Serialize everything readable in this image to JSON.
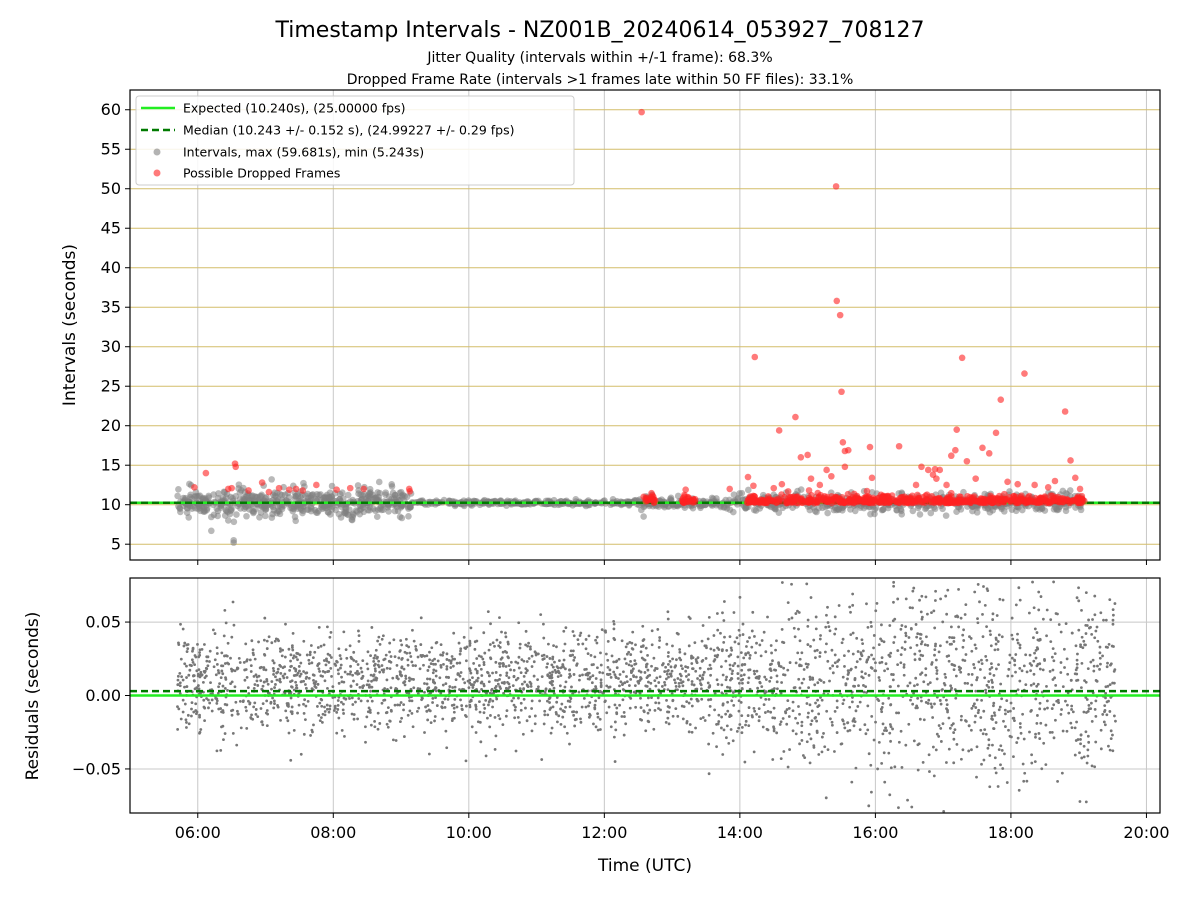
{
  "chart_data": [
    {
      "type": "scatter",
      "title": "Timestamp Intervals - NZ001B_20240614_053927_708127",
      "subtitle_1": "Jitter Quality (intervals within +/-1 frame): 68.3%",
      "subtitle_2": "Dropped Frame Rate (intervals >1 frames late within 50 FF files): 33.1%",
      "ylabel": "Intervals (seconds)",
      "xlim_hours": [
        5.0,
        20.2
      ],
      "ylim": [
        3,
        62.5
      ],
      "yticks": [
        5,
        10,
        15,
        20,
        25,
        30,
        35,
        40,
        45,
        50,
        55,
        60
      ],
      "ytick_labels": [
        "5",
        "10",
        "15",
        "20",
        "25",
        "30",
        "35",
        "40",
        "45",
        "50",
        "55",
        "60"
      ],
      "grid": true,
      "legend_position": "upper-left",
      "series": [
        {
          "name": "Expected (10.240s), (25.00000 fps)",
          "kind": "hline",
          "y": 10.24,
          "color": "#22ee22",
          "style": "solid"
        },
        {
          "name": "Median (10.243 +/- 0.152 s), (24.99227 +/- 0.29 fps)",
          "kind": "hline",
          "y": 10.243,
          "color": "#007a00",
          "style": "dashed"
        },
        {
          "name": "Intervals, max (59.681s), min (5.243s)",
          "kind": "scatter",
          "color": "#808080",
          "max": 59.681,
          "min": 5.243,
          "segments_hours": [
            [
              5.7,
              9.15
            ],
            [
              9.15,
              12.5
            ],
            [
              12.5,
              19.1
            ]
          ],
          "low_outliers": [
            {
              "x": 6.2,
              "y": 6.7
            },
            {
              "x": 6.53,
              "y": 5.5
            },
            {
              "x": 6.53,
              "y": 5.2
            },
            {
              "x": 12.58,
              "y": 8.5
            }
          ]
        },
        {
          "name": "Possible Dropped Frames",
          "kind": "scatter",
          "color": "#ff2222",
          "points": [
            {
              "x": 5.95,
              "y": 12.2
            },
            {
              "x": 6.12,
              "y": 14.0
            },
            {
              "x": 6.45,
              "y": 12.0
            },
            {
              "x": 6.5,
              "y": 12.1
            },
            {
              "x": 6.55,
              "y": 15.2
            },
            {
              "x": 6.56,
              "y": 14.8
            },
            {
              "x": 6.75,
              "y": 11.8
            },
            {
              "x": 6.95,
              "y": 12.8
            },
            {
              "x": 7.05,
              "y": 11.6
            },
            {
              "x": 7.2,
              "y": 12.1
            },
            {
              "x": 7.35,
              "y": 11.9
            },
            {
              "x": 7.45,
              "y": 12.0
            },
            {
              "x": 7.55,
              "y": 11.8
            },
            {
              "x": 7.75,
              "y": 12.5
            },
            {
              "x": 8.05,
              "y": 11.9
            },
            {
              "x": 8.25,
              "y": 12.1
            },
            {
              "x": 8.45,
              "y": 12.0
            },
            {
              "x": 9.12,
              "y": 12.0
            },
            {
              "x": 9.13,
              "y": 11.7
            },
            {
              "x": 12.55,
              "y": 59.7
            },
            {
              "x": 12.58,
              "y": 11.0
            },
            {
              "x": 13.2,
              "y": 11.9
            },
            {
              "x": 13.85,
              "y": 12.0
            },
            {
              "x": 14.12,
              "y": 13.5
            },
            {
              "x": 14.2,
              "y": 12.4
            },
            {
              "x": 14.22,
              "y": 28.7
            },
            {
              "x": 14.5,
              "y": 12.1
            },
            {
              "x": 14.58,
              "y": 19.4
            },
            {
              "x": 14.62,
              "y": 12.6
            },
            {
              "x": 14.82,
              "y": 21.1
            },
            {
              "x": 14.9,
              "y": 16.0
            },
            {
              "x": 15.0,
              "y": 16.3
            },
            {
              "x": 15.05,
              "y": 13.3
            },
            {
              "x": 15.18,
              "y": 12.5
            },
            {
              "x": 15.28,
              "y": 14.4
            },
            {
              "x": 15.35,
              "y": 13.6
            },
            {
              "x": 15.42,
              "y": 50.3
            },
            {
              "x": 15.43,
              "y": 35.8
            },
            {
              "x": 15.48,
              "y": 34.0
            },
            {
              "x": 15.5,
              "y": 24.3
            },
            {
              "x": 15.52,
              "y": 17.9
            },
            {
              "x": 15.55,
              "y": 16.8
            },
            {
              "x": 15.6,
              "y": 16.9
            },
            {
              "x": 15.55,
              "y": 14.8
            },
            {
              "x": 15.92,
              "y": 17.3
            },
            {
              "x": 15.95,
              "y": 13.4
            },
            {
              "x": 16.35,
              "y": 17.4
            },
            {
              "x": 16.6,
              "y": 12.5
            },
            {
              "x": 16.68,
              "y": 14.8
            },
            {
              "x": 16.78,
              "y": 14.4
            },
            {
              "x": 16.85,
              "y": 13.8
            },
            {
              "x": 16.88,
              "y": 14.5
            },
            {
              "x": 16.9,
              "y": 13.3
            },
            {
              "x": 16.95,
              "y": 14.4
            },
            {
              "x": 17.05,
              "y": 12.5
            },
            {
              "x": 17.12,
              "y": 16.2
            },
            {
              "x": 17.18,
              "y": 16.9
            },
            {
              "x": 17.2,
              "y": 19.5
            },
            {
              "x": 17.28,
              "y": 28.6
            },
            {
              "x": 17.35,
              "y": 15.5
            },
            {
              "x": 17.48,
              "y": 13.3
            },
            {
              "x": 17.58,
              "y": 17.2
            },
            {
              "x": 17.68,
              "y": 16.5
            },
            {
              "x": 17.78,
              "y": 19.1
            },
            {
              "x": 17.85,
              "y": 23.3
            },
            {
              "x": 17.95,
              "y": 12.9
            },
            {
              "x": 18.1,
              "y": 12.6
            },
            {
              "x": 18.2,
              "y": 26.6
            },
            {
              "x": 18.35,
              "y": 12.5
            },
            {
              "x": 18.55,
              "y": 12.2
            },
            {
              "x": 18.65,
              "y": 13.0
            },
            {
              "x": 18.8,
              "y": 21.8
            },
            {
              "x": 18.88,
              "y": 15.6
            },
            {
              "x": 18.95,
              "y": 13.4
            },
            {
              "x": 19.02,
              "y": 12.0
            }
          ],
          "dense_band": {
            "y_range": [
              10.2,
              11.3
            ],
            "segments_hours": [
              [
                12.6,
                12.75
              ],
              [
                13.15,
                13.35
              ],
              [
                14.1,
                19.1
              ]
            ]
          }
        }
      ]
    },
    {
      "type": "scatter",
      "xlabel": "Time (UTC)",
      "ylabel": "Residuals (seconds)",
      "xlim_hours": [
        5.0,
        20.2
      ],
      "xticks_hours": [
        6,
        8,
        10,
        12,
        14,
        16,
        18,
        20
      ],
      "xtick_labels": [
        "06:00",
        "08:00",
        "10:00",
        "12:00",
        "14:00",
        "16:00",
        "18:00",
        "20:00"
      ],
      "ylim": [
        -0.08,
        0.08
      ],
      "yticks": [
        -0.05,
        0.0,
        0.05
      ],
      "ytick_labels": [
        "−0.05",
        "0.00",
        "0.05"
      ],
      "grid": true,
      "series": [
        {
          "name": "Expected",
          "kind": "hline",
          "y": 0.0,
          "color": "#22ee22",
          "style": "solid"
        },
        {
          "name": "Median",
          "kind": "hline",
          "y": 0.003,
          "color": "#007a00",
          "style": "dashed"
        },
        {
          "name": "Residuals",
          "kind": "scatter",
          "color": "#777777",
          "x_range_hours": [
            5.7,
            19.55
          ],
          "y_spread": [
            -0.08,
            0.08
          ]
        }
      ]
    }
  ],
  "legend": {
    "expected": "Expected (10.240s), (25.00000 fps)",
    "median": "Median (10.243 +/- 0.152 s), (24.99227 +/- 0.29 fps)",
    "intervals": "Intervals, max (59.681s), min (5.243s)",
    "dropped": "Possible Dropped Frames"
  }
}
